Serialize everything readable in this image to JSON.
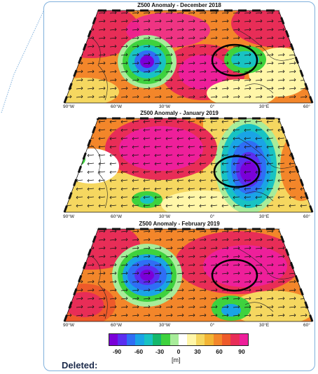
{
  "panels": [
    {
      "title": "Z500 Anomaly - December 2018",
      "lon_labels": [
        "90°W",
        "60°W",
        "30°W",
        "0°",
        "30°E",
        "60°"
      ]
    },
    {
      "title": "Z500 Anomaly - January 2019",
      "lon_labels": [
        "90°W",
        "60°W",
        "30°W",
        "0°",
        "30°E",
        "60°"
      ]
    },
    {
      "title": "Z500 Anomaly - February 2019",
      "lon_labels": [
        "90°W",
        "60°W",
        "30°W",
        "0°",
        "30°E",
        "60°"
      ]
    }
  ],
  "colorbar": {
    "ticks": [
      "-90",
      "-60",
      "-30",
      "0",
      "30",
      "60",
      "90"
    ],
    "unit": "[m]",
    "colors": [
      "#7a00d8",
      "#5a2ef0",
      "#2f6ef5",
      "#1aa4e6",
      "#18c3c3",
      "#14b86c",
      "#3ed23e",
      "#a8ec9a",
      "#ffffff",
      "#fff6a8",
      "#f5d760",
      "#f2b434",
      "#f3862a",
      "#ee5a2a",
      "#e82d57",
      "#ee1f9a"
    ]
  },
  "annotation": {
    "deleted_label": "Deleted:"
  }
}
